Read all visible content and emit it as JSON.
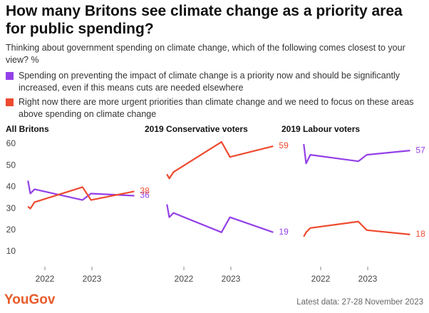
{
  "title": "How many Britons see climate change as a priority area for public spending?",
  "subtitle": "Thinking about government spending on climate change, which of the following comes closest to your view? %",
  "brand": "YouGov",
  "note": "Latest data: 27-28 November 2023",
  "chart_data": [
    {
      "type": "line",
      "title": "All Britons",
      "x": [
        2021.64,
        2021.69,
        2021.78,
        2022.8,
        2022.98,
        2023.9
      ],
      "xlim": [
        2021.5,
        2024.0
      ],
      "xticks": [
        2022,
        2023
      ],
      "ylim": [
        10,
        62
      ],
      "yticks": [
        10,
        20,
        30,
        40,
        50,
        60
      ],
      "series": [
        {
          "name": "Spending on preventing the impact of climate change is a priority now and should be significantly increased, even if this means cuts are needed elsewhere",
          "color": "#9440e8",
          "values": [
            43,
            37,
            39,
            34,
            37,
            36
          ]
        },
        {
          "name": "Right now there are more urgent priorities than climate change and we need to focus on these areas above spending on climate change",
          "color": "#ee4a2f",
          "values": [
            31,
            30,
            33,
            40,
            34,
            38
          ]
        }
      ]
    },
    {
      "type": "line",
      "title": "2019 Conservative voters",
      "x": [
        2021.64,
        2021.69,
        2021.78,
        2022.8,
        2022.98,
        2023.9
      ],
      "xlim": [
        2021.5,
        2024.0
      ],
      "xticks": [
        2022,
        2023
      ],
      "ylim": [
        10,
        62
      ],
      "series": [
        {
          "color": "#9440e8",
          "values": [
            32,
            26,
            28,
            19,
            26,
            19
          ]
        },
        {
          "color": "#ee4a2f",
          "values": [
            46,
            44,
            47,
            61,
            54,
            59
          ]
        }
      ]
    },
    {
      "type": "line",
      "title": "2019 Labour voters",
      "x": [
        2021.64,
        2021.69,
        2021.78,
        2022.8,
        2022.98,
        2023.9
      ],
      "xlim": [
        2021.5,
        2024.0
      ],
      "xticks": [
        2022,
        2023
      ],
      "ylim": [
        10,
        62
      ],
      "series": [
        {
          "color": "#9440e8",
          "values": [
            60,
            51,
            55,
            52,
            55,
            57
          ]
        },
        {
          "color": "#ee4a2f",
          "values": [
            17,
            19,
            21,
            24,
            20,
            18
          ]
        }
      ]
    }
  ]
}
